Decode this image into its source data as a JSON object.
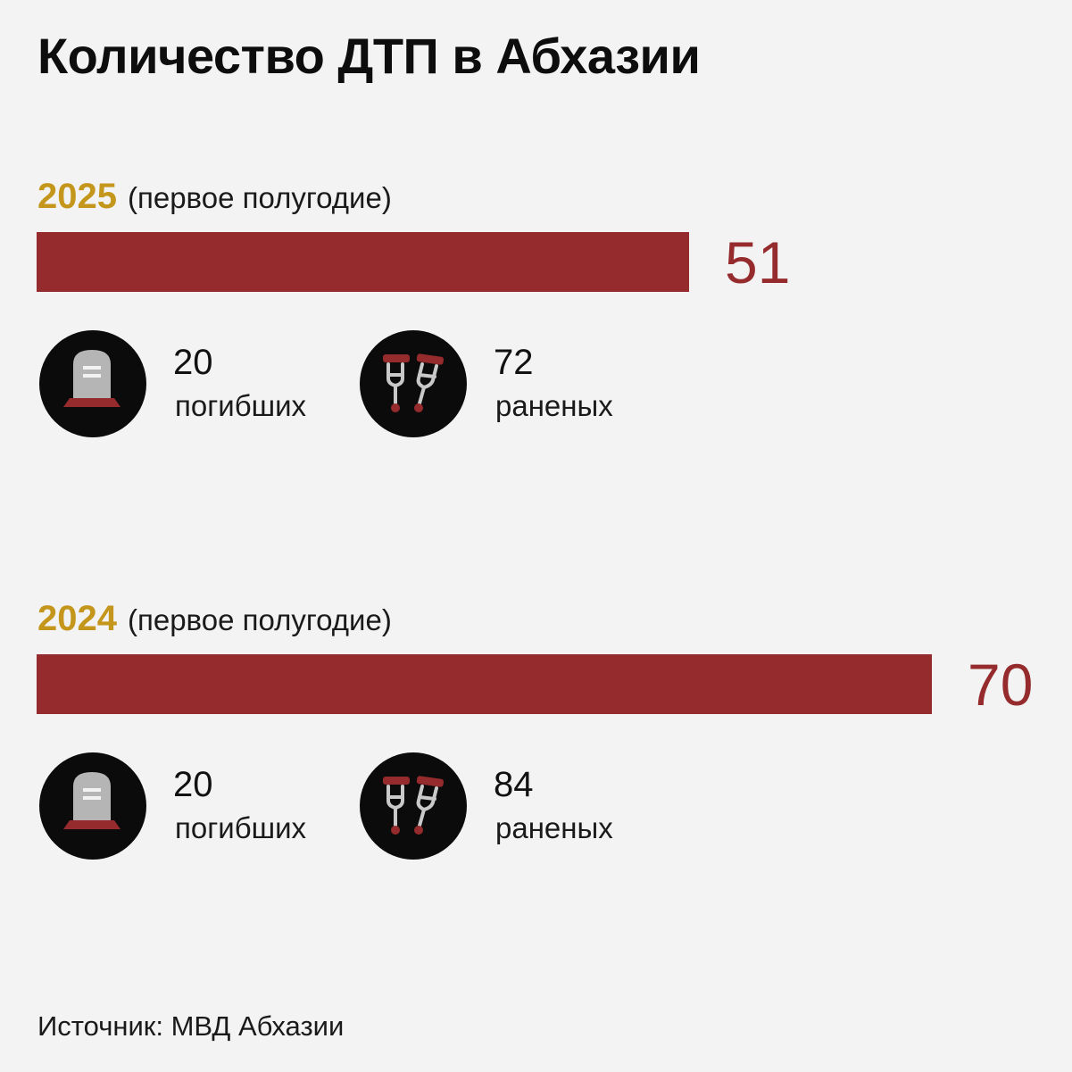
{
  "title": "Количество ДТП в Абхазии",
  "source": "Источник: МВД Абхазии",
  "colors": {
    "bar": "#962b2d",
    "year": "#c4961c",
    "icon_bg": "#0b0b0b",
    "background": "#f3f3f3"
  },
  "icons": {
    "deaths": "tombstone-icon",
    "injured": "crutches-icon"
  },
  "chart_data": {
    "type": "bar",
    "orientation": "horizontal",
    "title": "Количество ДТП в Абхазии",
    "categories": [
      "2025",
      "2024"
    ],
    "values": [
      51,
      70
    ],
    "xlim": [
      0,
      70
    ],
    "grid": false,
    "groups": [
      {
        "year": "2025",
        "period": "(первое полугодие)",
        "value": 51,
        "value_label": "51",
        "deaths": {
          "value": "20",
          "label": "погибших"
        },
        "injured": {
          "value": "72",
          "label": "раненых"
        }
      },
      {
        "year": "2024",
        "period": "(первое полугодие)",
        "value": 70,
        "value_label": "70",
        "deaths": {
          "value": "20",
          "label": "погибших"
        },
        "injured": {
          "value": "84",
          "label": "раненых"
        }
      }
    ]
  }
}
